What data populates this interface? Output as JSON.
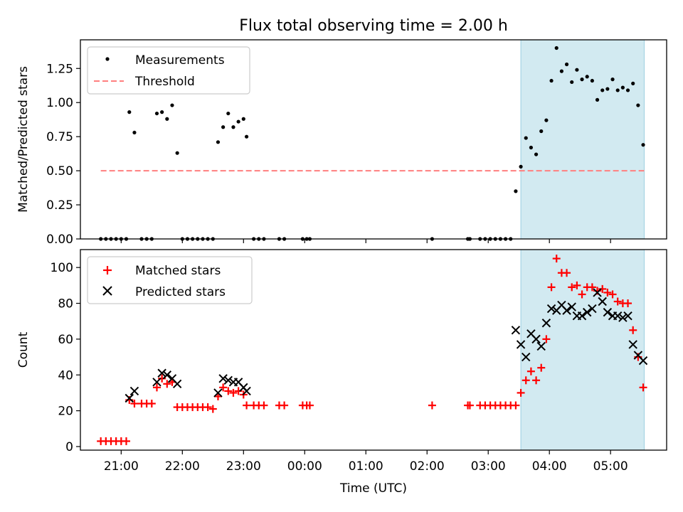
{
  "figure": {
    "title": "Flux total observing time = 2.00 h",
    "xlabel": "Time (UTC)"
  },
  "colors": {
    "measurement": "#000000",
    "threshold": "#ff7f7f",
    "matched": "#ff0000",
    "predicted": "#000000",
    "highlight": "#add8e6"
  },
  "chart_data": [
    {
      "type": "scatter",
      "ylabel": "Matched/Predicted stars",
      "x_axis": "time (hours since 00:00 UTC)",
      "xlim": [
        "20:20",
        "05:55"
      ],
      "ylim": [
        0,
        1.46
      ],
      "y_ticks": [
        0.0,
        0.25,
        0.5,
        0.75,
        1.0,
        1.25
      ],
      "y_tick_labels": [
        "0.00",
        "0.25",
        "0.50",
        "0.75",
        "1.00",
        "1.25"
      ],
      "highlight_span": [
        "03:32",
        "05:33"
      ],
      "legend_position": "upper left",
      "series": [
        {
          "name": "Measurements",
          "marker": "dot",
          "points": [
            [
              "20:40",
              0
            ],
            [
              "20:45",
              0
            ],
            [
              "20:50",
              0
            ],
            [
              "20:55",
              0
            ],
            [
              "21:00",
              0
            ],
            [
              "21:05",
              0
            ],
            [
              "21:08",
              0.93
            ],
            [
              "21:13",
              0.78
            ],
            [
              "21:20",
              0
            ],
            [
              "21:25",
              0
            ],
            [
              "21:30",
              0
            ],
            [
              "21:35",
              0.92
            ],
            [
              "21:40",
              0.93
            ],
            [
              "21:45",
              0.88
            ],
            [
              "21:50",
              0.98
            ],
            [
              "21:55",
              0.63
            ],
            [
              "22:00",
              0
            ],
            [
              "22:05",
              0
            ],
            [
              "22:10",
              0
            ],
            [
              "22:15",
              0
            ],
            [
              "22:20",
              0
            ],
            [
              "22:25",
              0
            ],
            [
              "22:30",
              0
            ],
            [
              "22:35",
              0.71
            ],
            [
              "22:40",
              0.82
            ],
            [
              "22:45",
              0.92
            ],
            [
              "22:50",
              0.82
            ],
            [
              "22:55",
              0.86
            ],
            [
              "23:00",
              0.88
            ],
            [
              "23:03",
              0.75
            ],
            [
              "23:10",
              0
            ],
            [
              "23:15",
              0
            ],
            [
              "23:20",
              0
            ],
            [
              "23:35",
              0
            ],
            [
              "23:40",
              0
            ],
            [
              "23:58",
              0
            ],
            [
              "00:02",
              0
            ],
            [
              "00:05",
              0
            ],
            [
              "02:05",
              0
            ],
            [
              "02:40",
              0
            ],
            [
              "02:42",
              0
            ],
            [
              "02:52",
              0
            ],
            [
              "02:57",
              0
            ],
            [
              "03:02",
              0
            ],
            [
              "03:07",
              0
            ],
            [
              "03:12",
              0
            ],
            [
              "03:17",
              0
            ],
            [
              "03:22",
              0
            ],
            [
              "03:27",
              0.35
            ],
            [
              "03:32",
              0.53
            ],
            [
              "03:37",
              0.74
            ],
            [
              "03:42",
              0.67
            ],
            [
              "03:47",
              0.62
            ],
            [
              "03:52",
              0.79
            ],
            [
              "03:57",
              0.87
            ],
            [
              "04:02",
              1.16
            ],
            [
              "04:07",
              1.4
            ],
            [
              "04:12",
              1.23
            ],
            [
              "04:17",
              1.28
            ],
            [
              "04:22",
              1.15
            ],
            [
              "04:27",
              1.24
            ],
            [
              "04:32",
              1.17
            ],
            [
              "04:37",
              1.19
            ],
            [
              "04:42",
              1.16
            ],
            [
              "04:47",
              1.02
            ],
            [
              "04:52",
              1.09
            ],
            [
              "04:57",
              1.1
            ],
            [
              "05:02",
              1.17
            ],
            [
              "05:07",
              1.09
            ],
            [
              "05:12",
              1.11
            ],
            [
              "05:17",
              1.09
            ],
            [
              "05:22",
              1.14
            ],
            [
              "05:27",
              0.98
            ],
            [
              "05:32",
              0.69
            ]
          ]
        },
        {
          "name": "Threshold",
          "style": "dashed",
          "points": [
            [
              "20:40",
              0.5
            ],
            [
              "05:33",
              0.5
            ]
          ]
        }
      ]
    },
    {
      "type": "scatter",
      "ylabel": "Count",
      "x_axis": "time (hours since 00:00 UTC)",
      "xlim": [
        "20:20",
        "05:55"
      ],
      "ylim": [
        -2,
        110
      ],
      "y_ticks": [
        0,
        20,
        40,
        60,
        80,
        100
      ],
      "y_tick_labels": [
        "0",
        "20",
        "40",
        "60",
        "80",
        "100"
      ],
      "x_tick_labels": [
        "21:00",
        "22:00",
        "23:00",
        "00:00",
        "01:00",
        "02:00",
        "03:00",
        "04:00",
        "05:00"
      ],
      "highlight_span": [
        "03:32",
        "05:33"
      ],
      "legend_position": "upper left",
      "series": [
        {
          "name": "Matched stars",
          "marker": "plus",
          "points": [
            [
              "20:40",
              3
            ],
            [
              "20:45",
              3
            ],
            [
              "20:50",
              3
            ],
            [
              "20:55",
              3
            ],
            [
              "21:00",
              3
            ],
            [
              "21:05",
              3
            ],
            [
              "21:08",
              26
            ],
            [
              "21:13",
              24
            ],
            [
              "21:20",
              24
            ],
            [
              "21:25",
              24
            ],
            [
              "21:30",
              24
            ],
            [
              "21:35",
              33
            ],
            [
              "21:40",
              38
            ],
            [
              "21:45",
              35
            ],
            [
              "21:50",
              36
            ],
            [
              "21:55",
              22
            ],
            [
              "22:00",
              22
            ],
            [
              "22:05",
              22
            ],
            [
              "22:10",
              22
            ],
            [
              "22:15",
              22
            ],
            [
              "22:20",
              22
            ],
            [
              "22:25",
              22
            ],
            [
              "22:30",
              21
            ],
            [
              "22:35",
              28
            ],
            [
              "22:40",
              33
            ],
            [
              "22:45",
              31
            ],
            [
              "22:50",
              30
            ],
            [
              "22:55",
              31
            ],
            [
              "23:00",
              29
            ],
            [
              "23:03",
              23
            ],
            [
              "23:10",
              23
            ],
            [
              "23:15",
              23
            ],
            [
              "23:20",
              23
            ],
            [
              "23:35",
              23
            ],
            [
              "23:40",
              23
            ],
            [
              "23:58",
              23
            ],
            [
              "00:02",
              23
            ],
            [
              "00:05",
              23
            ],
            [
              "02:05",
              23
            ],
            [
              "02:40",
              23
            ],
            [
              "02:42",
              23
            ],
            [
              "02:52",
              23
            ],
            [
              "02:57",
              23
            ],
            [
              "03:02",
              23
            ],
            [
              "03:07",
              23
            ],
            [
              "03:12",
              23
            ],
            [
              "03:17",
              23
            ],
            [
              "03:22",
              23
            ],
            [
              "03:27",
              23
            ],
            [
              "03:32",
              30
            ],
            [
              "03:37",
              37
            ],
            [
              "03:42",
              42
            ],
            [
              "03:47",
              37
            ],
            [
              "03:52",
              44
            ],
            [
              "03:57",
              60
            ],
            [
              "04:02",
              89
            ],
            [
              "04:07",
              105
            ],
            [
              "04:12",
              97
            ],
            [
              "04:17",
              97
            ],
            [
              "04:22",
              89
            ],
            [
              "04:27",
              90
            ],
            [
              "04:32",
              85
            ],
            [
              "04:37",
              89
            ],
            [
              "04:42",
              89
            ],
            [
              "04:47",
              87
            ],
            [
              "04:52",
              88
            ],
            [
              "04:57",
              86
            ],
            [
              "05:02",
              85
            ],
            [
              "05:07",
              81
            ],
            [
              "05:12",
              80
            ],
            [
              "05:17",
              80
            ],
            [
              "05:22",
              65
            ],
            [
              "05:27",
              50
            ],
            [
              "05:32",
              33
            ]
          ]
        },
        {
          "name": "Predicted stars",
          "marker": "x",
          "points": [
            [
              "21:08",
              27
            ],
            [
              "21:13",
              31
            ],
            [
              "21:35",
              36
            ],
            [
              "21:40",
              41
            ],
            [
              "21:45",
              40
            ],
            [
              "21:50",
              38
            ],
            [
              "21:55",
              35
            ],
            [
              "22:35",
              30
            ],
            [
              "22:40",
              38
            ],
            [
              "22:45",
              37
            ],
            [
              "22:50",
              36
            ],
            [
              "22:55",
              36
            ],
            [
              "23:00",
              33
            ],
            [
              "23:03",
              31
            ],
            [
              "03:27",
              65
            ],
            [
              "03:32",
              57
            ],
            [
              "03:37",
              50
            ],
            [
              "03:42",
              63
            ],
            [
              "03:47",
              60
            ],
            [
              "03:52",
              56
            ],
            [
              "03:57",
              69
            ],
            [
              "04:02",
              77
            ],
            [
              "04:07",
              76
            ],
            [
              "04:12",
              79
            ],
            [
              "04:17",
              76
            ],
            [
              "04:22",
              78
            ],
            [
              "04:27",
              73
            ],
            [
              "04:32",
              73
            ],
            [
              "04:37",
              75
            ],
            [
              "04:42",
              77
            ],
            [
              "04:47",
              86
            ],
            [
              "04:52",
              81
            ],
            [
              "04:57",
              75
            ],
            [
              "05:02",
              73
            ],
            [
              "05:07",
              73
            ],
            [
              "05:12",
              72
            ],
            [
              "05:17",
              73
            ],
            [
              "05:22",
              57
            ],
            [
              "05:27",
              51
            ],
            [
              "05:32",
              48
            ]
          ]
        }
      ]
    }
  ]
}
